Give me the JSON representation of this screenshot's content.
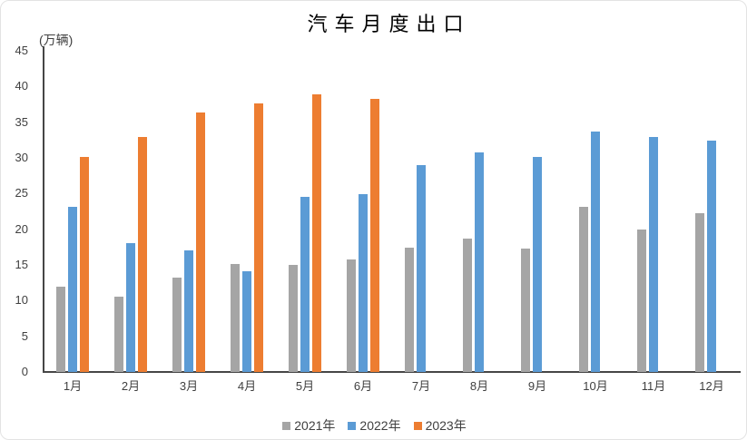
{
  "chart_data": {
    "type": "bar",
    "title": "汽车月度出口",
    "unit_label": "(万辆)",
    "categories": [
      "1月",
      "2月",
      "3月",
      "4月",
      "5月",
      "6月",
      "7月",
      "8月",
      "9月",
      "10月",
      "11月",
      "12月"
    ],
    "series": [
      {
        "name": "2021年",
        "color": "#A5A5A5",
        "values": [
          11.9,
          10.6,
          13.2,
          15.1,
          15.0,
          15.8,
          17.4,
          18.7,
          17.3,
          23.1,
          20.0,
          22.3
        ]
      },
      {
        "name": "2022年",
        "color": "#5B9BD5",
        "values": [
          23.1,
          18.0,
          17.0,
          14.1,
          24.5,
          24.9,
          29.0,
          30.8,
          30.1,
          33.7,
          32.9,
          32.4
        ]
      },
      {
        "name": "2023年",
        "color": "#ED7D31",
        "values": [
          30.1,
          32.9,
          36.4,
          37.6,
          38.9,
          38.2,
          null,
          null,
          null,
          null,
          null,
          null
        ]
      }
    ],
    "ylim": [
      0,
      45
    ],
    "ytick_step": 5,
    "grid": false,
    "legend_position": "bottom",
    "axis_color": "#464646",
    "text_color": "#404040",
    "title_color": "#000000"
  }
}
